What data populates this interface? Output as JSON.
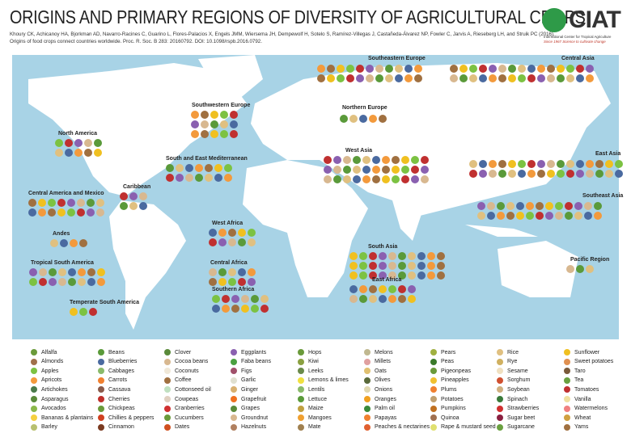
{
  "header": {
    "title": "ORIGINS AND PRIMARY REGIONS OF DIVERSITY OF AGRICULTURAL CROPS",
    "citation_line1": "Khoury CK, Achicanoy HA, Bjorkman AD, Navarro-Racines C, Guarino L, Flores-Palacios X, Engels JMM, Wiersema JH, Dempewolf H, Sotelo S, Ramírez-Villegas J, Castañeda-Álvarez NP, Fowler C, Jarvis A, Rieseberg LH, and Struik PC (2016).",
    "citation_line2": "Origins of food crops connect countries worldwide. Proc. R. Soc. B 283: 20160792. DOI: 10.1098/rspb.2016.0792."
  },
  "logo": {
    "name": "CIAT",
    "subtitle": "International Center for Tropical Agriculture",
    "tagline": "Since 1967 Science to cultivate change",
    "color": "#2e9a48"
  },
  "map": {
    "ocean_color": "#a8d3e6",
    "land_color": "#ffffff",
    "regions": [
      {
        "name": "North America"
      },
      {
        "name": "Southwestern Europe"
      },
      {
        "name": "South and East Mediterranean"
      },
      {
        "name": "Caribbean"
      },
      {
        "name": "Central America and Mexico"
      },
      {
        "name": "Andes"
      },
      {
        "name": "Tropical South America"
      },
      {
        "name": "Temperate South America"
      },
      {
        "name": "West Africa"
      },
      {
        "name": "Central Africa"
      },
      {
        "name": "Southern Africa"
      },
      {
        "name": "Southeastern Europe"
      },
      {
        "name": "Northern Europe"
      },
      {
        "name": "West Asia"
      },
      {
        "name": "Central Asia"
      },
      {
        "name": "East Asia"
      },
      {
        "name": "Southeast Asia"
      },
      {
        "name": "South Asia"
      },
      {
        "name": "East Africa"
      },
      {
        "name": "Pacific Region"
      }
    ]
  },
  "legend": [
    [
      {
        "label": "Alfalfa",
        "color": "#6a9a3a"
      },
      {
        "label": "Almonds",
        "color": "#a0704a"
      },
      {
        "label": "Apples",
        "color": "#7cc242"
      },
      {
        "label": "Apricots",
        "color": "#f39a3c"
      },
      {
        "label": "Artichokes",
        "color": "#4a7a4a"
      },
      {
        "label": "Asparagus",
        "color": "#5a8a3a"
      },
      {
        "label": "Avocados",
        "color": "#8ab84a"
      },
      {
        "label": "Bananas & plantains",
        "color": "#f5d040"
      },
      {
        "label": "Barley",
        "color": "#b8c070"
      }
    ],
    [
      {
        "label": "Beans",
        "color": "#5a9a3a"
      },
      {
        "label": "Blueberries",
        "color": "#4a6aa0"
      },
      {
        "label": "Cabbages",
        "color": "#8aba6a"
      },
      {
        "label": "Carrots",
        "color": "#f08030"
      },
      {
        "label": "Cassava",
        "color": "#8a5a4a"
      },
      {
        "label": "Cherries",
        "color": "#c0302a"
      },
      {
        "label": "Chickpeas",
        "color": "#6a9a3a"
      },
      {
        "label": "Chillies & peppers",
        "color": "#d04020"
      },
      {
        "label": "Cinnamon",
        "color": "#7a3a20"
      }
    ],
    [
      {
        "label": "Clover",
        "color": "#5a8a3a"
      },
      {
        "label": "Cocoa beans",
        "color": "#d8b890"
      },
      {
        "label": "Coconuts",
        "color": "#f0e8d8"
      },
      {
        "label": "Coffee",
        "color": "#a07040"
      },
      {
        "label": "Cottonseed oil",
        "color": "#c0e0c0"
      },
      {
        "label": "Cowpeas",
        "color": "#e0d0c0"
      },
      {
        "label": "Cranberries",
        "color": "#d03030"
      },
      {
        "label": "Cucumbers",
        "color": "#6a9a3a"
      },
      {
        "label": "Dates",
        "color": "#d05020"
      }
    ],
    [
      {
        "label": "Eggplants",
        "color": "#8a60b0"
      },
      {
        "label": "Faba beans",
        "color": "#4aa040"
      },
      {
        "label": "Figs",
        "color": "#a0506a"
      },
      {
        "label": "Garlic",
        "color": "#e0e0d0"
      },
      {
        "label": "Ginger",
        "color": "#d8b070"
      },
      {
        "label": "Grapefruit",
        "color": "#f07020"
      },
      {
        "label": "Grapes",
        "color": "#5a8a3a"
      },
      {
        "label": "Groundnut",
        "color": "#d8b890"
      },
      {
        "label": "Hazelnuts",
        "color": "#b08060"
      }
    ],
    [
      {
        "label": "Hops",
        "color": "#6a9a3a"
      },
      {
        "label": "Kiwi",
        "color": "#8aa040"
      },
      {
        "label": "Leeks",
        "color": "#6a8a4a"
      },
      {
        "label": "Lemons & limes",
        "color": "#f0e040"
      },
      {
        "label": "Lentils",
        "color": "#8aba6a"
      },
      {
        "label": "Lettuce",
        "color": "#5a9a3a"
      },
      {
        "label": "Maize",
        "color": "#c0a040"
      },
      {
        "label": "Mangoes",
        "color": "#f0a030"
      },
      {
        "label": "Mate",
        "color": "#a08050"
      }
    ],
    [
      {
        "label": "Melons",
        "color": "#c0b890"
      },
      {
        "label": "Millets",
        "color": "#e0a0a0"
      },
      {
        "label": "Oats",
        "color": "#e0c070"
      },
      {
        "label": "Olives",
        "color": "#5a6a3a"
      },
      {
        "label": "Onions",
        "color": "#e0d8b0"
      },
      {
        "label": "Oranges",
        "color": "#f0a020"
      },
      {
        "label": "Palm oil",
        "color": "#3a8a3a"
      },
      {
        "label": "Papayas",
        "color": "#f08030"
      },
      {
        "label": "Peaches & nectarines",
        "color": "#e06030"
      }
    ],
    [
      {
        "label": "Pears",
        "color": "#a0b040"
      },
      {
        "label": "Peas",
        "color": "#3a7a2a"
      },
      {
        "label": "Pigeonpeas",
        "color": "#6a9a3a"
      },
      {
        "label": "Pineapples",
        "color": "#f0c030"
      },
      {
        "label": "Plums",
        "color": "#f08030"
      },
      {
        "label": "Potatoes",
        "color": "#c0a070"
      },
      {
        "label": "Pumpkins",
        "color": "#c07020"
      },
      {
        "label": "Quinoa",
        "color": "#a07050"
      },
      {
        "label": "Rape & mustard seed",
        "color": "#e0e070"
      }
    ],
    [
      {
        "label": "Rice",
        "color": "#e0c080"
      },
      {
        "label": "Rye",
        "color": "#d0b060"
      },
      {
        "label": "Sesame",
        "color": "#f0e0c0"
      },
      {
        "label": "Sorghum",
        "color": "#d05030"
      },
      {
        "label": "Soybean",
        "color": "#d0b080"
      },
      {
        "label": "Spinach",
        "color": "#3a7a3a"
      },
      {
        "label": "Strawberries",
        "color": "#d03030"
      },
      {
        "label": "Sugar beet",
        "color": "#8a2040"
      },
      {
        "label": "Sugarcane",
        "color": "#6aa040"
      }
    ],
    [
      {
        "label": "Sunflower",
        "color": "#f0c020"
      },
      {
        "label": "Sweet potatoes",
        "color": "#e09050"
      },
      {
        "label": "Taro",
        "color": "#7a5a3a"
      },
      {
        "label": "Tea",
        "color": "#6aa040"
      },
      {
        "label": "Tomatoes",
        "color": "#c03030"
      },
      {
        "label": "Vanilla",
        "color": "#f0e0a0"
      },
      {
        "label": "Watermelons",
        "color": "#f08080"
      },
      {
        "label": "Wheat",
        "color": "#d0a040"
      },
      {
        "label": "Yams",
        "color": "#a07040"
      }
    ]
  ]
}
